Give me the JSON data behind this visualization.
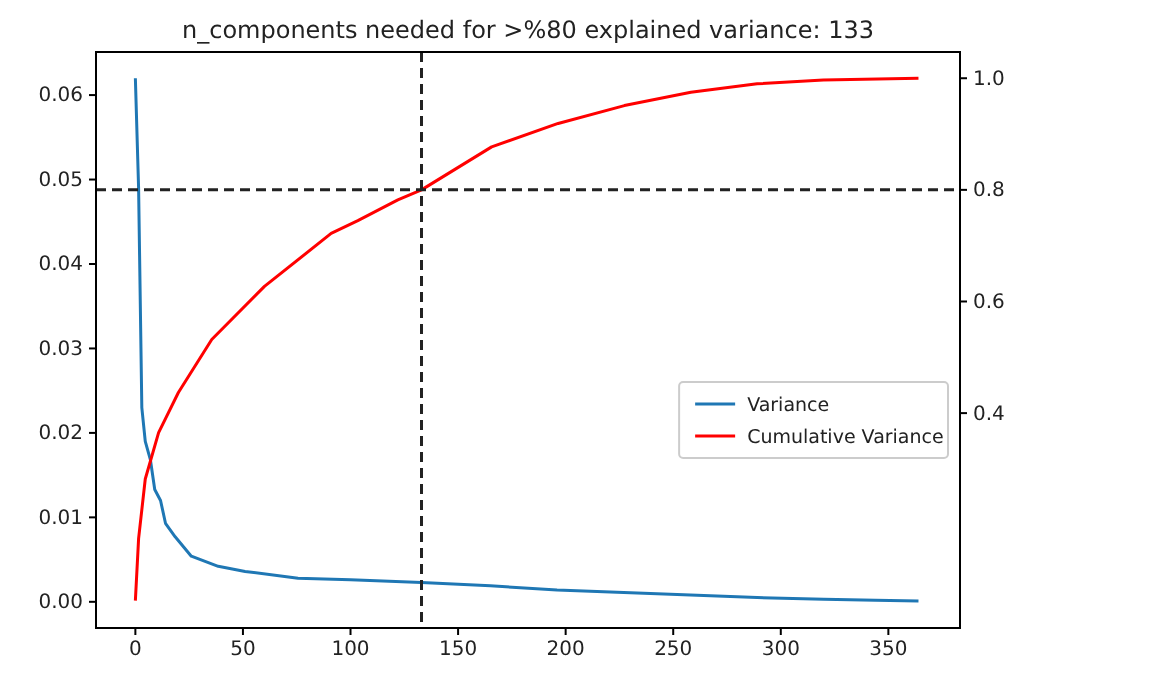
{
  "chart_data": {
    "type": "line",
    "title": "n_components needed for >%80 explained variance: 133",
    "xlim": [
      -18.3,
      383.3
    ],
    "xticks": [
      0,
      50,
      100,
      150,
      200,
      250,
      300,
      350
    ],
    "ylim": [
      -0.0031,
      0.0651
    ],
    "yticks": [
      {
        "value": 0,
        "label": "0.00"
      },
      {
        "value": 0.01,
        "label": "0.01"
      },
      {
        "value": 0.02,
        "label": "0.02"
      },
      {
        "value": 0.03,
        "label": "0.03"
      },
      {
        "value": 0.04,
        "label": "0.04"
      },
      {
        "value": 0.05,
        "label": "0.05"
      },
      {
        "value": 0.06,
        "label": "0.06"
      }
    ],
    "y2lim": [
      0.015,
      1.047
    ],
    "y2ticks": [
      0.4,
      0.6,
      0.8,
      {
        "value": 1,
        "label": "1.0"
      }
    ],
    "legend": "right",
    "grid": false,
    "marker": "none",
    "line_style": "solid",
    "series": [
      {
        "name": "Variance",
        "color": "#1f77b4",
        "x": [
          0,
          1.5,
          3,
          4.6,
          7,
          9,
          11.7,
          14,
          18.5,
          26,
          38.5,
          51,
          75.6,
          100,
          133,
          165,
          196,
          227,
          258,
          289,
          320,
          344,
          364
        ],
        "values": [
          0.062,
          0.049,
          0.023,
          0.019,
          0.0168,
          0.0133,
          0.012,
          0.0093,
          0.0077,
          0.0054,
          0.0042,
          0.0036,
          0.0028,
          0.0026,
          0.0023,
          0.0019,
          0.0014,
          0.0011,
          0.0008,
          0.0005,
          0.0003,
          0.0002,
          0.0001
        ]
      },
      {
        "name": "Cumulative Variance",
        "color": "#ff0000",
        "axis": "y2",
        "x": [
          0,
          1.5,
          4.6,
          10.8,
          20,
          35.5,
          60,
          91,
          103.4,
          122,
          133,
          165.6,
          196.5,
          227.3,
          258.2,
          289,
          319.8,
          364
        ],
        "values": [
          0.064,
          0.175,
          0.282,
          0.365,
          0.437,
          0.532,
          0.627,
          0.722,
          0.745,
          0.782,
          0.8,
          0.877,
          0.919,
          0.951,
          0.975,
          0.99,
          0.997,
          1.0
        ]
      }
    ],
    "ref_lines": [
      {
        "axis": "x",
        "value": 133,
        "color": "#222222",
        "line_style": "dashed"
      },
      {
        "axis": "y2",
        "value": 0.8,
        "color": "#222222",
        "line_style": "dashed"
      }
    ]
  }
}
